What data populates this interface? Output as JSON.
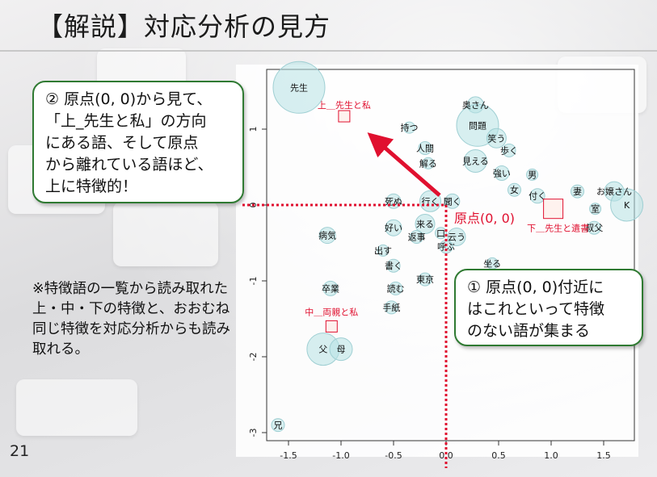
{
  "slide": {
    "title": "【解説】対応分析の見方",
    "page_number": "21"
  },
  "callouts": {
    "upper": [
      "② 原点(0, 0)から見て、",
      "「上_先生と私」の方向",
      "にある語、そして原点",
      "から離れている語ほど、",
      "上に特徴的！"
    ],
    "origin": [
      "① 原点(0, 0)付近に",
      "はこれといって特徴",
      "のない語が集まる"
    ]
  },
  "note": "※特徴語の一覧から読み取れた上・中・下の特徴と、おおむね同じ特徴を対応分析からも読み取れる。",
  "chart_data": {
    "type": "scatter",
    "title": "",
    "xlabel": "",
    "ylabel": "",
    "xlim": [
      -1.8,
      1.8
    ],
    "ylim": [
      -3.1,
      1.6
    ],
    "x_ticks": [
      "-1.5",
      "-1.0",
      "-0.5",
      "0.0",
      "0.5",
      "1.0",
      "1.5"
    ],
    "y_ticks": [
      "-3",
      "-2",
      "-1",
      "0",
      "1"
    ],
    "origin_label": "原点(0, 0)",
    "words": [
      {
        "label": "先生",
        "x": -1.4,
        "y": 1.55,
        "size": 32
      },
      {
        "label": "奥さん",
        "x": 0.28,
        "y": 1.32,
        "size": 10
      },
      {
        "label": "持つ",
        "x": -0.35,
        "y": 1.02,
        "size": 7
      },
      {
        "label": "問題",
        "x": 0.3,
        "y": 1.05,
        "size": 26
      },
      {
        "label": "笑う",
        "x": 0.48,
        "y": 0.88,
        "size": 12
      },
      {
        "label": "人間",
        "x": -0.2,
        "y": 0.75,
        "size": 8
      },
      {
        "label": "歩く",
        "x": 0.6,
        "y": 0.72,
        "size": 8
      },
      {
        "label": "解る",
        "x": -0.17,
        "y": 0.55,
        "size": 7
      },
      {
        "label": "見える",
        "x": 0.28,
        "y": 0.58,
        "size": 14
      },
      {
        "label": "強い",
        "x": 0.53,
        "y": 0.42,
        "size": 9
      },
      {
        "label": "男",
        "x": 0.82,
        "y": 0.4,
        "size": 7
      },
      {
        "label": "女",
        "x": 0.65,
        "y": 0.2,
        "size": 8
      },
      {
        "label": "付く",
        "x": 0.87,
        "y": 0.12,
        "size": 9
      },
      {
        "label": "妻",
        "x": 1.25,
        "y": 0.18,
        "size": 8
      },
      {
        "label": "お嬢さん",
        "x": 1.6,
        "y": 0.18,
        "size": 12
      },
      {
        "label": "室",
        "x": 1.42,
        "y": -0.05,
        "size": 7
      },
      {
        "label": "K",
        "x": 1.72,
        "y": 0.0,
        "size": 20
      },
      {
        "label": "叔父",
        "x": 1.41,
        "y": -0.3,
        "size": 8
      },
      {
        "label": "死ぬ",
        "x": -0.5,
        "y": 0.05,
        "size": 9
      },
      {
        "label": "行く",
        "x": -0.15,
        "y": 0.05,
        "size": 13
      },
      {
        "label": "聞く",
        "x": 0.06,
        "y": 0.05,
        "size": 9
      },
      {
        "label": "来る",
        "x": -0.2,
        "y": -0.25,
        "size": 12
      },
      {
        "label": "好い",
        "x": -0.5,
        "y": -0.3,
        "size": 10
      },
      {
        "label": "口",
        "x": -0.05,
        "y": -0.37,
        "size": 7
      },
      {
        "label": "返事",
        "x": -0.28,
        "y": -0.42,
        "size": 8
      },
      {
        "label": "云う",
        "x": 0.1,
        "y": -0.42,
        "size": 11
      },
      {
        "label": "呼ぶ",
        "x": 0.0,
        "y": -0.55,
        "size": 8
      },
      {
        "label": "病気",
        "x": -1.13,
        "y": -0.4,
        "size": 10
      },
      {
        "label": "出す",
        "x": -0.6,
        "y": -0.6,
        "size": 7
      },
      {
        "label": "書く",
        "x": -0.5,
        "y": -0.8,
        "size": 8
      },
      {
        "label": "坐る",
        "x": 0.44,
        "y": -0.77,
        "size": 7
      },
      {
        "label": "東京",
        "x": -0.2,
        "y": -0.98,
        "size": 8
      },
      {
        "label": "読む",
        "x": -0.48,
        "y": -1.1,
        "size": 8
      },
      {
        "label": "卒業",
        "x": -1.1,
        "y": -1.1,
        "size": 9
      },
      {
        "label": "手紙",
        "x": -0.52,
        "y": -1.35,
        "size": 8
      },
      {
        "label": "父",
        "x": -1.17,
        "y": -1.9,
        "size": 20
      },
      {
        "label": "母",
        "x": -1.0,
        "y": -1.9,
        "size": 14
      },
      {
        "label": "兄",
        "x": -1.6,
        "y": -2.9,
        "size": 8
      }
    ],
    "groups": [
      {
        "label": "上＿先生と私",
        "x": -0.97,
        "y": 1.17
      },
      {
        "label": "中＿両親と私",
        "x": -1.09,
        "y": -1.6
      },
      {
        "label": "下＿先生と遺書",
        "x": 1.02,
        "y": -0.05
      }
    ],
    "colors": {
      "bubble_fill": "#b7e2e4",
      "bubble_stroke": "#9fcfd3",
      "group_label": "#e0102f",
      "arrow": "#e0102f",
      "origin_lines": "#e0102f",
      "callout_border": "#2f7a32"
    }
  }
}
